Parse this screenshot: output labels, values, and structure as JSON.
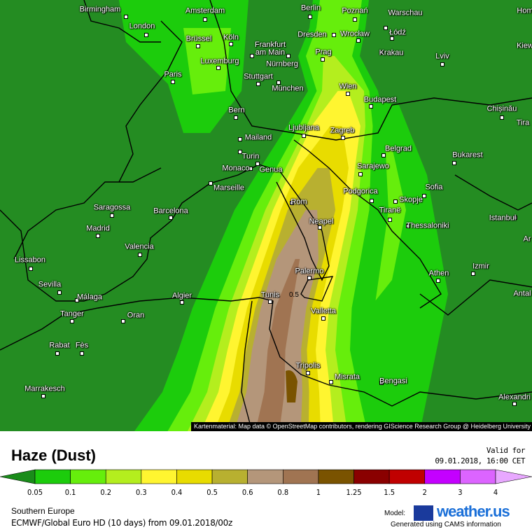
{
  "map": {
    "attribution": "Kartenmaterial: Map data © OpenStreetMap contributors, rendering GIScience Research Group @ Heidelberg University",
    "contour_label": "0.5",
    "cities": [
      "Birmingham",
      "London",
      "Amsterdam",
      "Berlin",
      "Poznań",
      "Warschau",
      "Hom",
      "Brüssel",
      "Köln",
      "Frankfurt am Main",
      "Dresden",
      "Wrocław",
      "Łódź",
      "Prag",
      "Krakau",
      "Lviv",
      "Kiew",
      "Luxemburg",
      "Nürnberg",
      "Paris",
      "Stuttgart",
      "München",
      "Wien",
      "Budapest",
      "Bern",
      "Chișinău",
      "Tira",
      "Ljubljana",
      "Zagreb",
      "Mailand",
      "Turin",
      "Belgrad",
      "Bukarest",
      "Monaco",
      "Genua",
      "Sarajewo",
      "Marseille",
      "Podgorica",
      "Sofia",
      "Rom",
      "Skopje",
      "Saragossa",
      "Barcelona",
      "Tiranë",
      "Istanbul",
      "Neapel",
      "Madrid",
      "Thessaloniki",
      "Ar",
      "Valencia",
      "Lissabon",
      "Izmir",
      "Palermo",
      "Athen",
      "Sevilla",
      "Málaga",
      "Algier",
      "Tunis",
      "Antal",
      "Valletta",
      "Tanger",
      "Oran",
      "Rabat",
      "Fès",
      "Tripolis",
      "Misrata",
      "Bengasi",
      "Marrakesch",
      "Alexandri"
    ]
  },
  "legend": {
    "title": "Haze (Dust)",
    "valid_for_label": "Valid for",
    "valid_time": "09.01.2018, 16:00 CET",
    "ticks": [
      "0.05",
      "0.1",
      "0.2",
      "0.3",
      "0.4",
      "0.5",
      "0.6",
      "0.8",
      "1",
      "1.25",
      "1.5",
      "2",
      "3",
      "4"
    ],
    "colors": [
      "#1a8c1a",
      "#1ccc0c",
      "#66ee0c",
      "#b4ee1e",
      "#fff530",
      "#e8dc00",
      "#b8b030",
      "#b4967a",
      "#a07452",
      "#7a5300",
      "#8a0000",
      "#c00000",
      "#c400ff",
      "#dc64ff",
      "#e8a8ff"
    ]
  },
  "footer": {
    "region": "Southern Europe",
    "model_run": "ECMWF/Global Euro HD (10 days) from 09.01.2018/00z",
    "model_label": "Model:",
    "logo": "weather.us",
    "generated": "Generated using CAMS information"
  }
}
